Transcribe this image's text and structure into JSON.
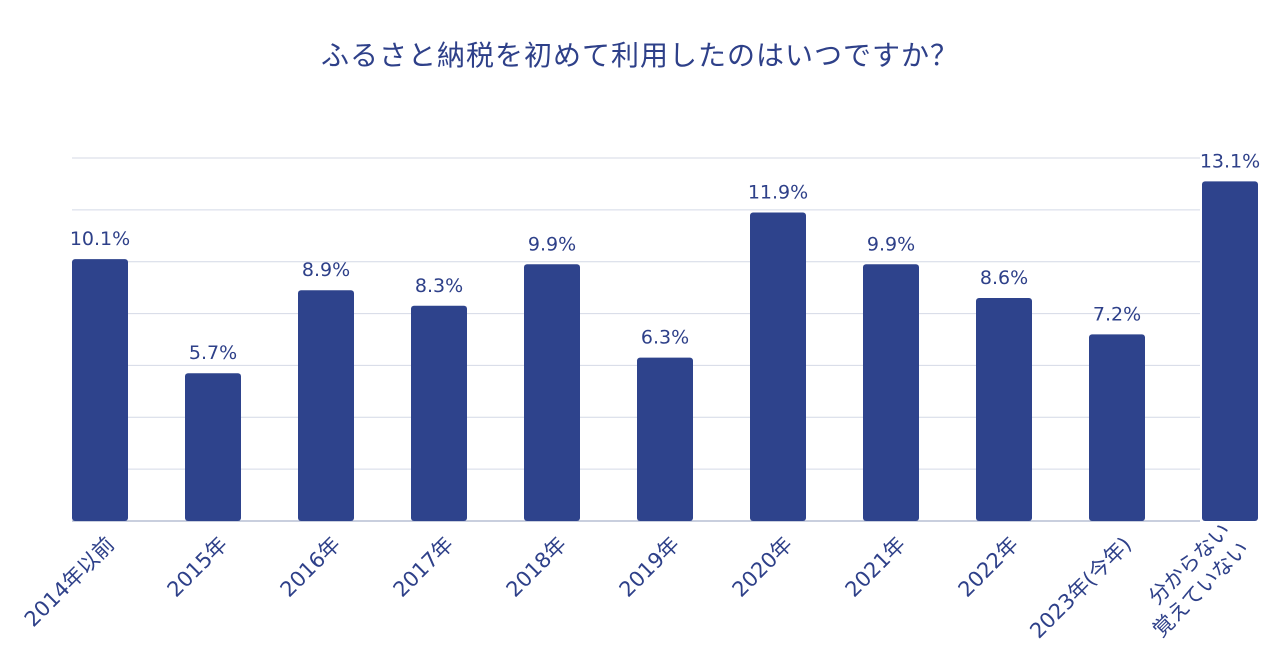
{
  "chart_data": {
    "type": "bar",
    "title": "ふるさと納税を初めて利用したのはいつですか？",
    "categories": [
      "2014年以前",
      "2015年",
      "2016年",
      "2017年",
      "2018年",
      "2019年",
      "2020年",
      "2021年",
      "2022年",
      "2023年(今年)",
      "分からない\n覚えていない"
    ],
    "value_labels": [
      "10.1%",
      "5.7%",
      "8.9%",
      "8.3%",
      "9.9%",
      "6.3%",
      "11.9%",
      "9.9%",
      "8.6%",
      "7.2%",
      "13.1%"
    ],
    "series": [
      {
        "values": [
          10.1,
          5.7,
          8.9,
          8.3,
          9.9,
          6.3,
          11.9,
          9.9,
          8.6,
          7.2,
          13.1
        ]
      }
    ],
    "ylim": [
      0,
      14
    ],
    "grid": true,
    "colors": {
      "bar": "#2e438c",
      "text": "#2e4089",
      "grid": "#d4d9e6"
    }
  }
}
